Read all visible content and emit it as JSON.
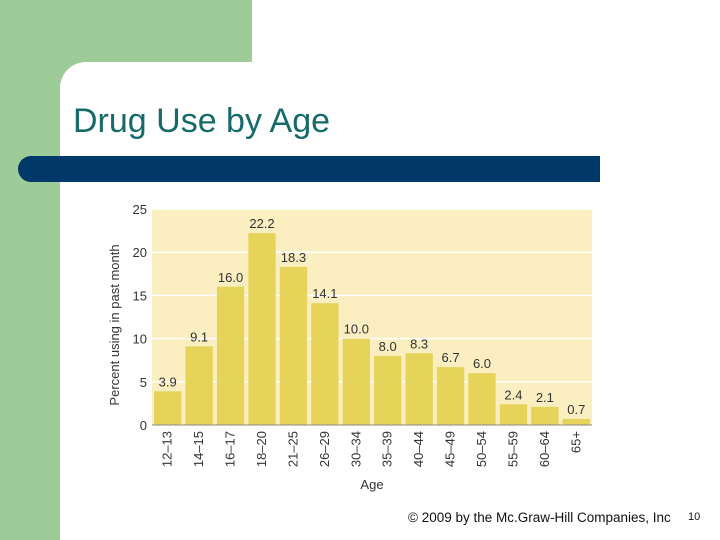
{
  "slide": {
    "title": "Drug Use by Age",
    "copyright": "© 2009 by the Mc.Graw-Hill Companies, Inc",
    "page_number": "10"
  },
  "chart_data": {
    "type": "bar",
    "title": "",
    "xlabel": "Age",
    "ylabel": "Percent using in past month",
    "ylim": [
      0,
      25
    ],
    "yticks": [
      0,
      5,
      10,
      15,
      20,
      25
    ],
    "grid": true,
    "categories": [
      "12–13",
      "14–15",
      "16–17",
      "18–20",
      "21–25",
      "26–29",
      "30–34",
      "35–39",
      "40–44",
      "45–49",
      "50–54",
      "55–59",
      "60–64",
      "65+"
    ],
    "values": [
      3.9,
      9.1,
      16.0,
      22.2,
      18.3,
      14.1,
      10.0,
      8.0,
      8.3,
      6.7,
      6.0,
      2.4,
      2.1,
      0.7
    ],
    "value_labels": [
      "3.9",
      "9.1",
      "16.0",
      "22.2",
      "18.3",
      "14.1",
      "10.0",
      "8.0",
      "8.3",
      "6.7",
      "6.0",
      "2.4",
      "2.1",
      "0.7"
    ],
    "colors": {
      "plot_bg": "#fbeec0",
      "bar": "#e6d35a",
      "grid": "#ffffff",
      "text": "#333333"
    }
  }
}
